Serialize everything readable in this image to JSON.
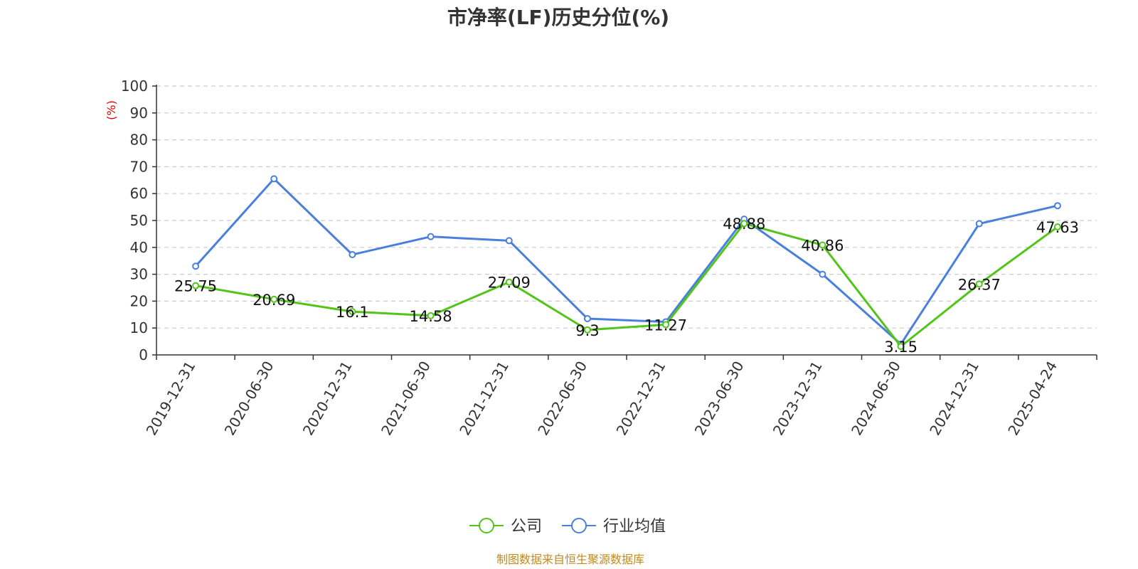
{
  "chart_data": {
    "type": "line",
    "title": "市净率(LF)历史分位(%)",
    "ylabel": "(%)",
    "ylim": [
      0,
      100
    ],
    "yticks": [
      0,
      10,
      20,
      30,
      40,
      50,
      60,
      70,
      80,
      90,
      100
    ],
    "categories": [
      "2019-12-31",
      "2020-06-30",
      "2020-12-31",
      "2021-06-30",
      "2021-12-31",
      "2022-06-30",
      "2022-12-31",
      "2023-06-30",
      "2023-12-31",
      "2024-06-30",
      "2024-12-31",
      "2025-04-24"
    ],
    "series": [
      {
        "name": "公司",
        "color": "#52c41a",
        "values": [
          25.75,
          20.69,
          16.1,
          14.58,
          27.09,
          9.3,
          11.27,
          48.88,
          40.86,
          3.15,
          26.37,
          47.63
        ],
        "labels": [
          "25.75",
          "20.69",
          "16.1",
          "14.58",
          "27.09",
          "9.3",
          "11.27",
          "48.88",
          "40.86",
          "3.15",
          "26.37",
          "47.63"
        ]
      },
      {
        "name": "行业均值",
        "color": "#4a7fdc",
        "values": [
          33,
          65.5,
          37.3,
          44,
          42.5,
          13.5,
          12.3,
          50.5,
          30,
          4,
          48.8,
          55.5
        ]
      }
    ],
    "grid": true,
    "legend_position": "bottom-center"
  },
  "source_note": "制图数据来自恒生聚源数据库"
}
